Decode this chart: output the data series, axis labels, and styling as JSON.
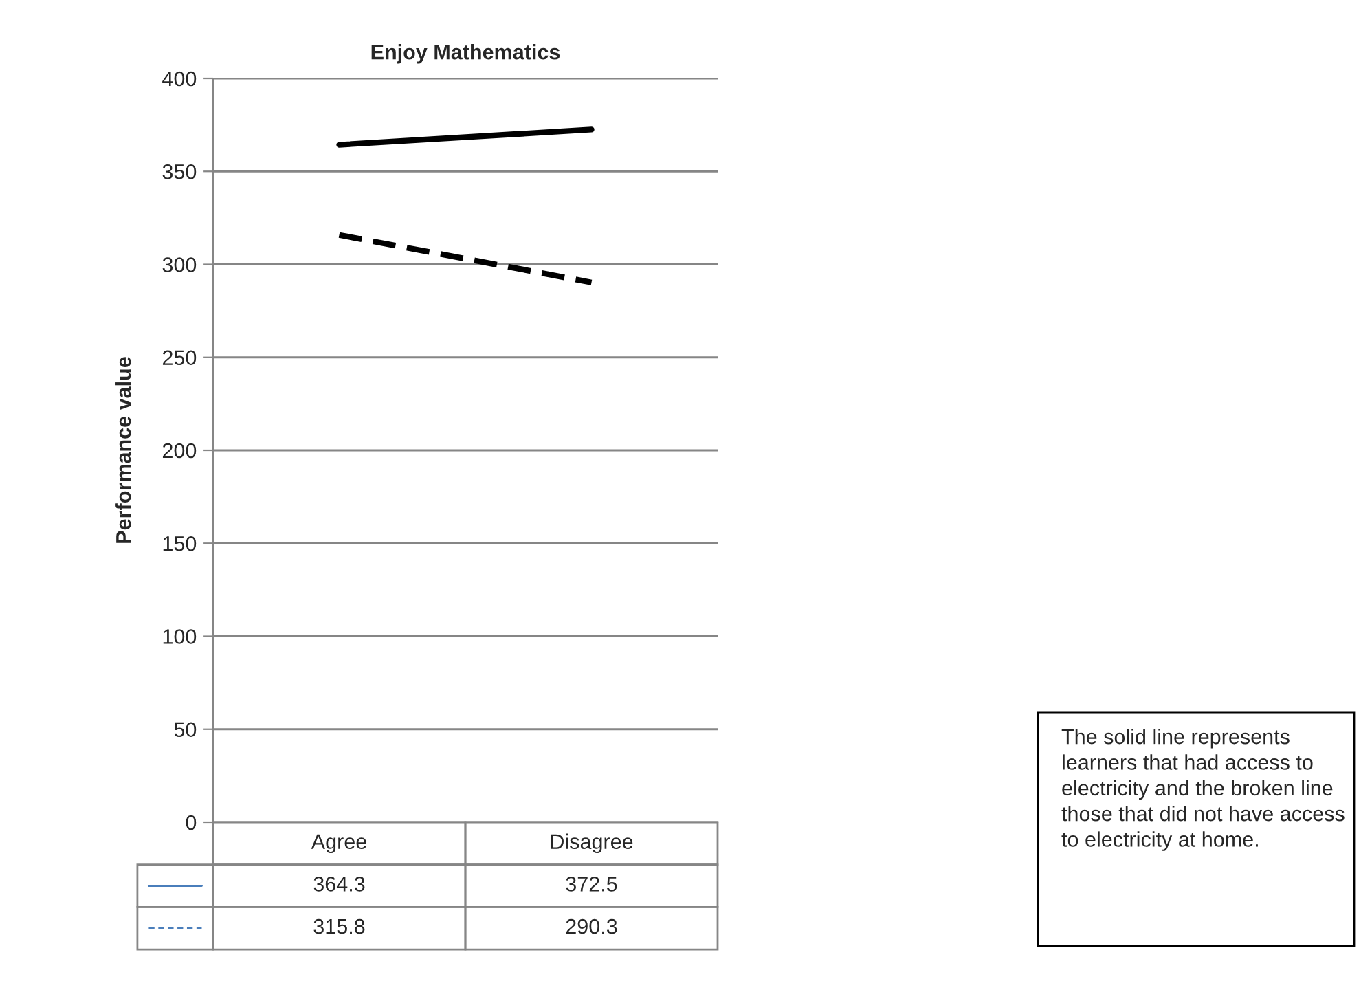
{
  "chart_data": {
    "type": "line",
    "title": "Enjoy Mathematics",
    "ylabel": "Performance value",
    "categories": [
      "Agree",
      "Disagree"
    ],
    "series": [
      {
        "color": "#000000",
        "line_style": "solid",
        "values": [
          364.3,
          372.5
        ]
      },
      {
        "color": "#000000",
        "line_style": "dashed",
        "values": [
          315.8,
          290.3
        ]
      }
    ],
    "ylim": [
      0,
      400
    ],
    "yticks": [
      0,
      50,
      100,
      150,
      200,
      250,
      300,
      350,
      400
    ],
    "grid": "y",
    "marker": "none",
    "legend": false,
    "data_labels": true,
    "annotations": [
      "The solid line represents learners that had access to electricity and the broken line those that did not have access to electricity at home."
    ]
  }
}
